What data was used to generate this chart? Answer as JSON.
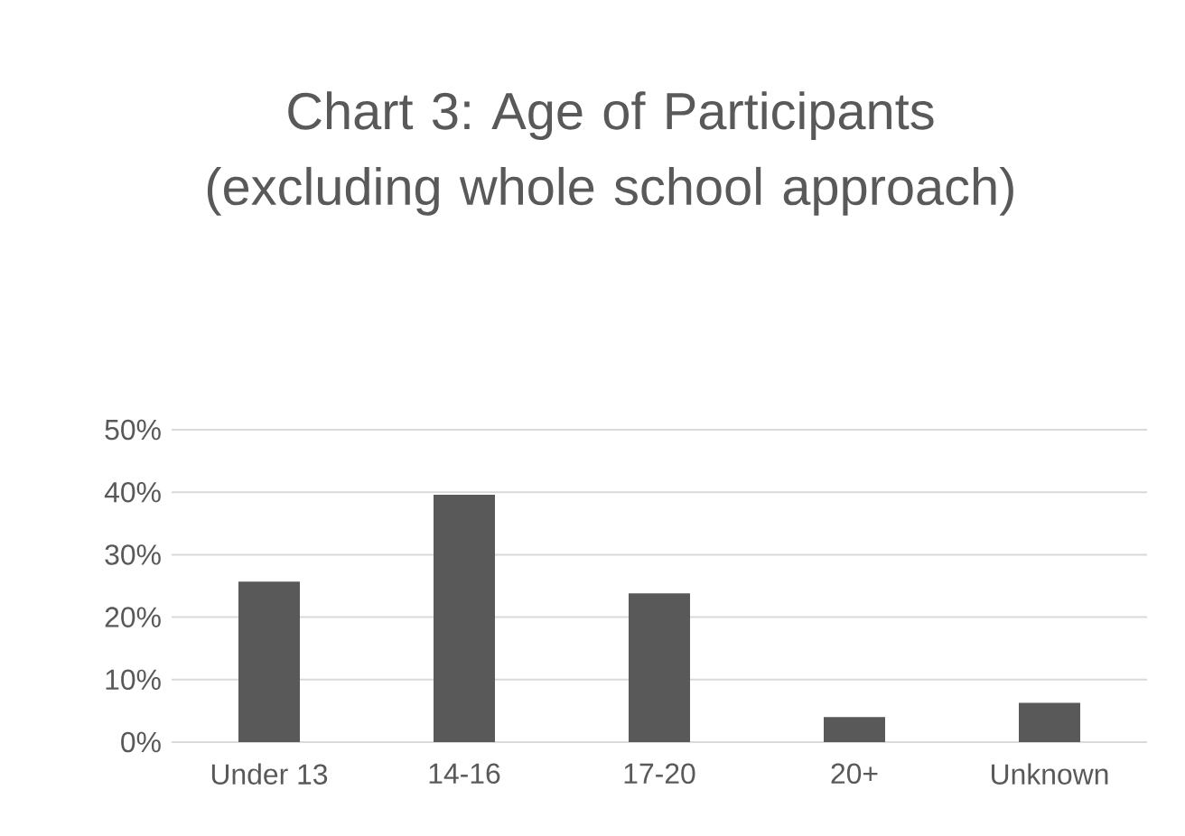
{
  "chart_data": {
    "type": "bar",
    "title": "Chart 3: Age of Participants (excluding whole school approach)",
    "categories": [
      "Under 13",
      "14-16",
      "17-20",
      "20+",
      "Unknown"
    ],
    "values": [
      25.7,
      39.6,
      23.8,
      4.0,
      6.3
    ],
    "color": "#595959",
    "ylim": [
      0,
      50
    ],
    "yticks": [
      {
        "value": 0,
        "label": "0%"
      },
      {
        "value": 10,
        "label": "10%"
      },
      {
        "value": 20,
        "label": "20%"
      },
      {
        "value": 30,
        "label": "30%"
      },
      {
        "value": 40,
        "label": "40%"
      },
      {
        "value": 50,
        "label": "50%"
      }
    ],
    "grid": "y"
  }
}
